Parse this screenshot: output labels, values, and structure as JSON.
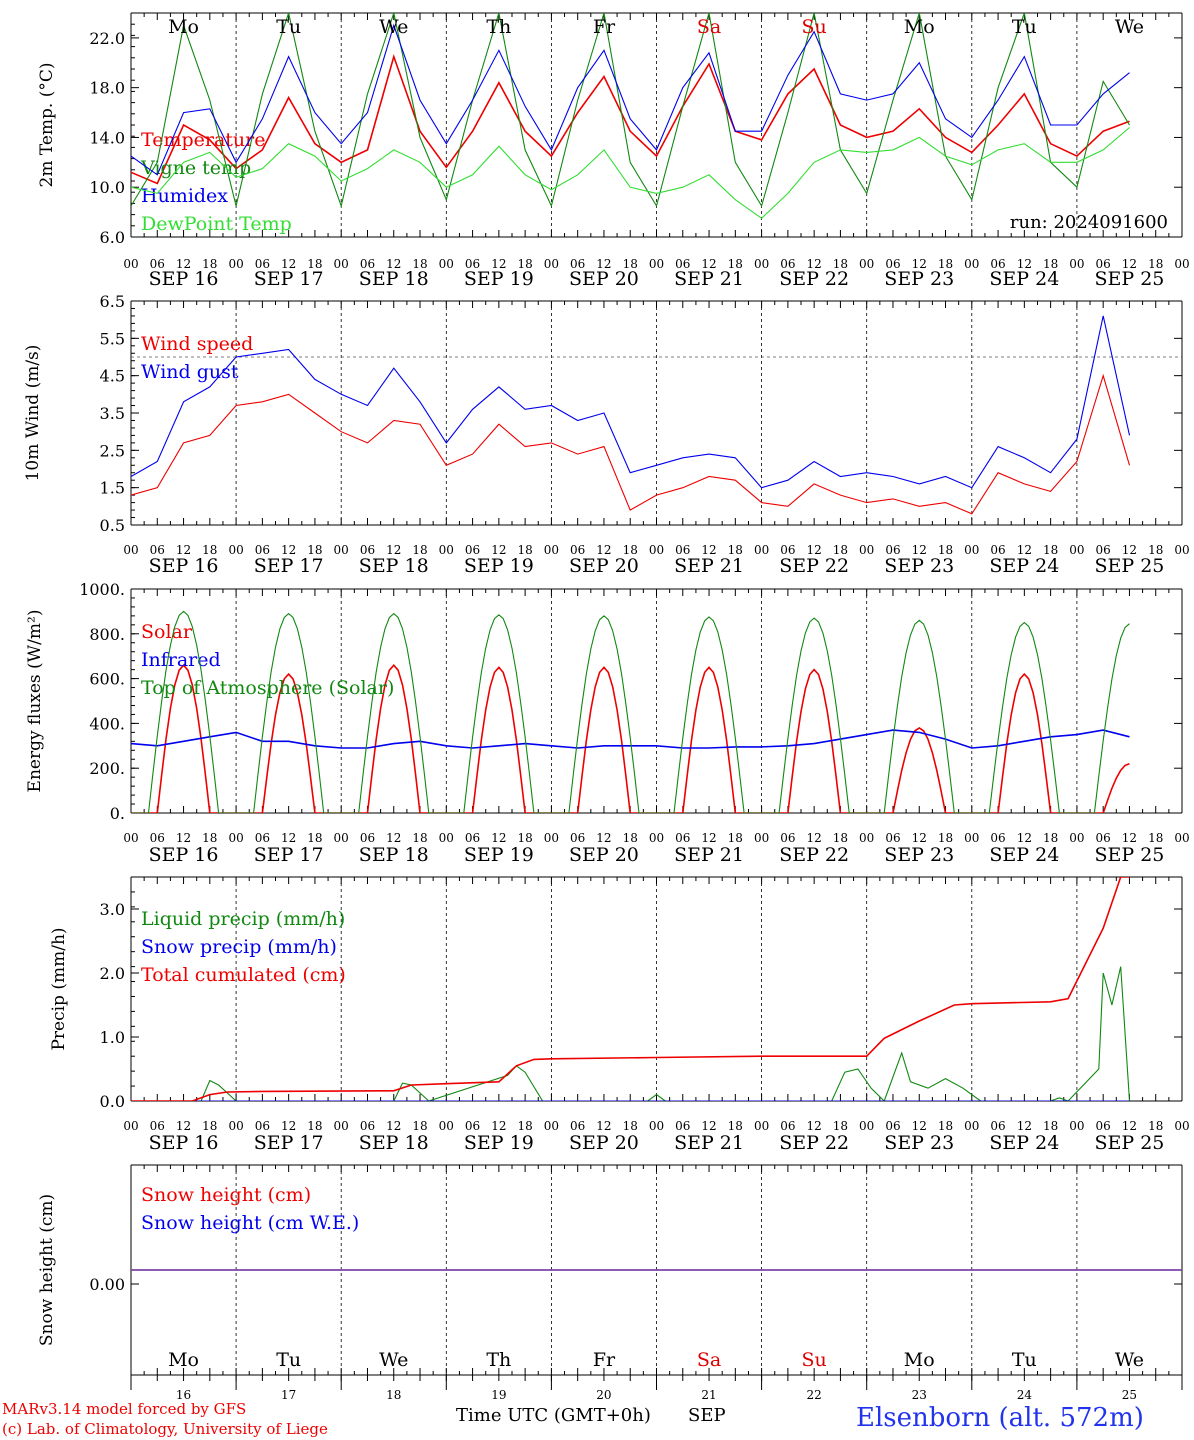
{
  "days": [
    "Mo",
    "Tu",
    "We",
    "Th",
    "Fr",
    "Sa",
    "Su",
    "Mo",
    "Tu",
    "We"
  ],
  "day_colors": [
    "#000",
    "#000",
    "#000",
    "#000",
    "#000",
    "#d00",
    "#d00",
    "#000",
    "#000",
    "#000"
  ],
  "dates": [
    "SEP 16",
    "SEP 17",
    "SEP 18",
    "SEP 19",
    "SEP 20",
    "SEP 21",
    "SEP 22",
    "SEP 23",
    "SEP 24",
    "SEP 25"
  ],
  "day_numbers": [
    "16",
    "17",
    "18",
    "19",
    "20",
    "21",
    "22",
    "23",
    "24",
    "25"
  ],
  "hour_ticks": [
    "00",
    "06",
    "12",
    "18"
  ],
  "run_label": "run: 2024091600",
  "footer": {
    "model": "MARv3.14 model forced by GFS",
    "lab": "(c) Lab. of Climatology, University of Liege",
    "xlabel": "Time UTC (GMT+0h)",
    "month": "SEP",
    "station": "Elsenborn (alt. 572m)"
  },
  "chart_data": [
    {
      "id": "temperature",
      "type": "line",
      "ylabel": "2m Temp. (°C)",
      "ylim": [
        6,
        24
      ],
      "yticks": [
        "6.0",
        "10.0",
        "14.0",
        "18.0",
        "22.0"
      ],
      "x_unit": "hours since SEP 16 00 UTC",
      "series": [
        {
          "name": "Temperature",
          "color": "#ee0000",
          "x": [
            0,
            6,
            12,
            18,
            24,
            30,
            36,
            42,
            48,
            54,
            60,
            66,
            72,
            78,
            84,
            90,
            96,
            102,
            108,
            114,
            120,
            126,
            132,
            138,
            144,
            150,
            156,
            162,
            168,
            174,
            180,
            186,
            192,
            198,
            204,
            210,
            216,
            222,
            228
          ],
          "y": [
            11.2,
            10.3,
            15.0,
            13.8,
            11.5,
            13.0,
            17.2,
            13.5,
            12.0,
            13.0,
            20.5,
            14.5,
            11.6,
            14.5,
            18.4,
            14.5,
            12.5,
            16.0,
            18.9,
            14.5,
            12.5,
            16.5,
            19.9,
            14.5,
            13.8,
            17.5,
            19.5,
            15.0,
            14.0,
            14.5,
            16.3,
            14.0,
            12.8,
            15.0,
            17.5,
            13.5,
            12.5,
            14.5,
            15.3
          ]
        },
        {
          "name": "Vigne temp",
          "color": "#118811",
          "x": [
            0,
            6,
            12,
            18,
            24,
            30,
            36,
            42,
            48,
            54,
            60,
            66,
            72,
            78,
            84,
            90,
            96,
            102,
            108,
            114,
            120,
            126,
            132,
            138,
            144,
            150,
            156,
            162,
            168,
            174,
            180,
            186,
            192,
            198,
            204,
            210,
            216,
            222,
            228
          ],
          "y": [
            8.5,
            12.0,
            23.0,
            17.0,
            8.5,
            17.5,
            24.0,
            14.5,
            8.5,
            17.5,
            24.0,
            14.0,
            9.0,
            17.0,
            24.0,
            13.0,
            8.5,
            17.0,
            24.0,
            12.0,
            8.5,
            16.5,
            24.0,
            12.0,
            8.5,
            16.0,
            24.0,
            13.0,
            9.5,
            17.0,
            24.0,
            12.5,
            9.0,
            18.0,
            24.0,
            12.0,
            10.0,
            18.5,
            15.0
          ]
        },
        {
          "name": "Humidex",
          "color": "#0000ee",
          "x": [
            0,
            6,
            12,
            18,
            24,
            30,
            36,
            42,
            48,
            54,
            60,
            66,
            72,
            78,
            84,
            90,
            96,
            102,
            108,
            114,
            120,
            126,
            132,
            138,
            144,
            150,
            156,
            162,
            168,
            174,
            180,
            186,
            192,
            198,
            204,
            210,
            216,
            222,
            228
          ],
          "y": [
            12.5,
            11.0,
            16.0,
            16.3,
            12.0,
            15.5,
            20.5,
            16.0,
            13.5,
            16.0,
            23.0,
            17.0,
            13.5,
            17.0,
            21.0,
            16.5,
            13.0,
            18.0,
            21.0,
            15.5,
            13.0,
            18.0,
            20.8,
            14.5,
            14.5,
            19.0,
            22.5,
            17.5,
            17.0,
            17.5,
            20.0,
            15.5,
            14.0,
            17.0,
            20.5,
            15.0,
            15.0,
            17.5,
            19.2
          ]
        },
        {
          "name": "DewPoint Temp",
          "color": "#33dd33",
          "x": [
            0,
            6,
            12,
            18,
            24,
            30,
            36,
            42,
            48,
            54,
            60,
            66,
            72,
            78,
            84,
            90,
            96,
            102,
            108,
            114,
            120,
            126,
            132,
            138,
            144,
            150,
            156,
            162,
            168,
            174,
            180,
            186,
            192,
            198,
            204,
            210,
            216,
            222,
            228
          ],
          "y": [
            10.0,
            9.5,
            12.0,
            12.8,
            10.8,
            11.5,
            13.5,
            12.5,
            10.5,
            11.5,
            13.0,
            12.0,
            10.0,
            11.0,
            13.3,
            11.0,
            9.8,
            11.0,
            13.0,
            10.0,
            9.5,
            10.0,
            11.0,
            9.0,
            7.5,
            9.5,
            12.0,
            13.0,
            12.8,
            13.0,
            14.0,
            12.5,
            11.8,
            13.0,
            13.5,
            12.0,
            12.0,
            13.0,
            14.8
          ]
        }
      ]
    },
    {
      "id": "wind",
      "type": "line",
      "ylabel": "10m Wind (m/s)",
      "ylim": [
        0.5,
        6.5
      ],
      "yticks": [
        "0.5",
        "1.5",
        "2.5",
        "3.5",
        "4.5",
        "5.5",
        "6.5"
      ],
      "threshold": 5.0,
      "series": [
        {
          "name": "Wind speed",
          "color": "#ee0000",
          "x": [
            0,
            6,
            12,
            18,
            24,
            30,
            36,
            42,
            48,
            54,
            60,
            66,
            72,
            78,
            84,
            90,
            96,
            102,
            108,
            114,
            120,
            126,
            132,
            138,
            144,
            150,
            156,
            162,
            168,
            174,
            180,
            186,
            192,
            198,
            204,
            210,
            216,
            222,
            228
          ],
          "y": [
            1.3,
            1.5,
            2.7,
            2.9,
            3.7,
            3.8,
            4.0,
            3.5,
            3.0,
            2.7,
            3.3,
            3.2,
            2.1,
            2.4,
            3.2,
            2.6,
            2.7,
            2.4,
            2.6,
            0.9,
            1.3,
            1.5,
            1.8,
            1.7,
            1.1,
            1.0,
            1.6,
            1.3,
            1.1,
            1.2,
            1.0,
            1.1,
            0.8,
            1.9,
            1.6,
            1.4,
            2.2,
            4.5,
            2.1
          ]
        },
        {
          "name": "Wind gust",
          "color": "#0000ee",
          "x": [
            0,
            6,
            12,
            18,
            24,
            30,
            36,
            42,
            48,
            54,
            60,
            66,
            72,
            78,
            84,
            90,
            96,
            102,
            108,
            114,
            120,
            126,
            132,
            138,
            144,
            150,
            156,
            162,
            168,
            174,
            180,
            186,
            192,
            198,
            204,
            210,
            216,
            222,
            228
          ],
          "y": [
            1.8,
            2.2,
            3.8,
            4.2,
            5.0,
            5.1,
            5.2,
            4.4,
            4.0,
            3.7,
            4.7,
            3.8,
            2.7,
            3.6,
            4.2,
            3.6,
            3.7,
            3.3,
            3.5,
            1.9,
            2.1,
            2.3,
            2.4,
            2.3,
            1.5,
            1.7,
            2.2,
            1.8,
            1.9,
            1.8,
            1.6,
            1.8,
            1.5,
            2.6,
            2.3,
            1.9,
            2.8,
            6.1,
            2.9
          ]
        }
      ]
    },
    {
      "id": "energy",
      "type": "line",
      "ylabel": "Energy fluxes (W/m²)",
      "ylim": [
        0,
        1000
      ],
      "yticks": [
        "0.",
        "200.",
        "400.",
        "600.",
        "800.",
        "1000."
      ],
      "series": [
        {
          "name": "Solar",
          "color": "#ee0000",
          "peaks": [
            660,
            620,
            660,
            650,
            650,
            650,
            640,
            380,
            620,
            220
          ]
        },
        {
          "name": "Infrared",
          "color": "#0000ee",
          "x": [
            0,
            6,
            12,
            18,
            24,
            30,
            36,
            42,
            48,
            54,
            60,
            66,
            72,
            78,
            84,
            90,
            96,
            102,
            108,
            114,
            120,
            126,
            132,
            138,
            144,
            150,
            156,
            162,
            168,
            174,
            180,
            186,
            192,
            198,
            204,
            210,
            216,
            222,
            228
          ],
          "y": [
            310,
            300,
            320,
            340,
            360,
            320,
            320,
            300,
            290,
            290,
            310,
            320,
            300,
            290,
            300,
            310,
            300,
            290,
            300,
            300,
            300,
            290,
            290,
            295,
            295,
            300,
            310,
            330,
            350,
            370,
            360,
            330,
            290,
            300,
            320,
            340,
            350,
            370,
            340
          ]
        },
        {
          "name": "Top of Atmosphere (Solar)",
          "color": "#118811",
          "peaks": [
            900,
            890,
            890,
            885,
            880,
            875,
            870,
            860,
            850,
            845
          ]
        }
      ]
    },
    {
      "id": "precip",
      "type": "line",
      "ylabel": "Precip (mm/h)",
      "ylim": [
        0,
        3.5
      ],
      "yticks": [
        "0.0",
        "1.0",
        "2.0",
        "3.0"
      ],
      "series": [
        {
          "name": "Liquid precip (mm/h)",
          "color": "#118811",
          "x": [
            0,
            16,
            18,
            20,
            24,
            60,
            62,
            64,
            68,
            86,
            88,
            90,
            94,
            100,
            118,
            120,
            122,
            160,
            163,
            166,
            169,
            172,
            176,
            178,
            182,
            186,
            190,
            194,
            210,
            212,
            214,
            221,
            222,
            224,
            226,
            228
          ],
          "y": [
            0,
            0,
            0.32,
            0.25,
            0,
            0,
            0.28,
            0.25,
            0,
            0.4,
            0.55,
            0.45,
            0,
            0,
            0,
            0.1,
            0,
            0,
            0.45,
            0.5,
            0.2,
            0,
            0.75,
            0.3,
            0.2,
            0.35,
            0.2,
            0,
            0,
            0.05,
            0,
            0.5,
            2.0,
            1.5,
            2.1,
            0
          ]
        },
        {
          "name": "Snow precip (mm/h)",
          "color": "#0000ee",
          "x": [
            0,
            228
          ],
          "y": [
            0,
            0
          ]
        },
        {
          "name": "Total cumulated (cm)",
          "color": "#ee0000",
          "x": [
            0,
            14,
            18,
            22,
            30,
            60,
            64,
            72,
            84,
            88,
            92,
            96,
            120,
            144,
            168,
            172,
            180,
            188,
            192,
            210,
            214,
            222,
            226,
            228
          ],
          "y": [
            0,
            0,
            0.1,
            0.14,
            0.15,
            0.16,
            0.25,
            0.27,
            0.3,
            0.55,
            0.65,
            0.66,
            0.68,
            0.7,
            0.7,
            0.98,
            1.25,
            1.5,
            1.52,
            1.55,
            1.6,
            2.7,
            3.5,
            3.5
          ]
        }
      ]
    },
    {
      "id": "snow",
      "type": "line",
      "ylabel": "Snow height (cm)",
      "yticks": [
        "0.00"
      ],
      "series": [
        {
          "name": "Snow height (cm)",
          "color": "#ee0000",
          "x": [
            0,
            228
          ],
          "y": [
            0,
            0
          ]
        },
        {
          "name": "Snow height (cm W.E.)",
          "color": "#0000ee",
          "x": [
            0,
            228
          ],
          "y": [
            0,
            0
          ]
        }
      ]
    }
  ]
}
